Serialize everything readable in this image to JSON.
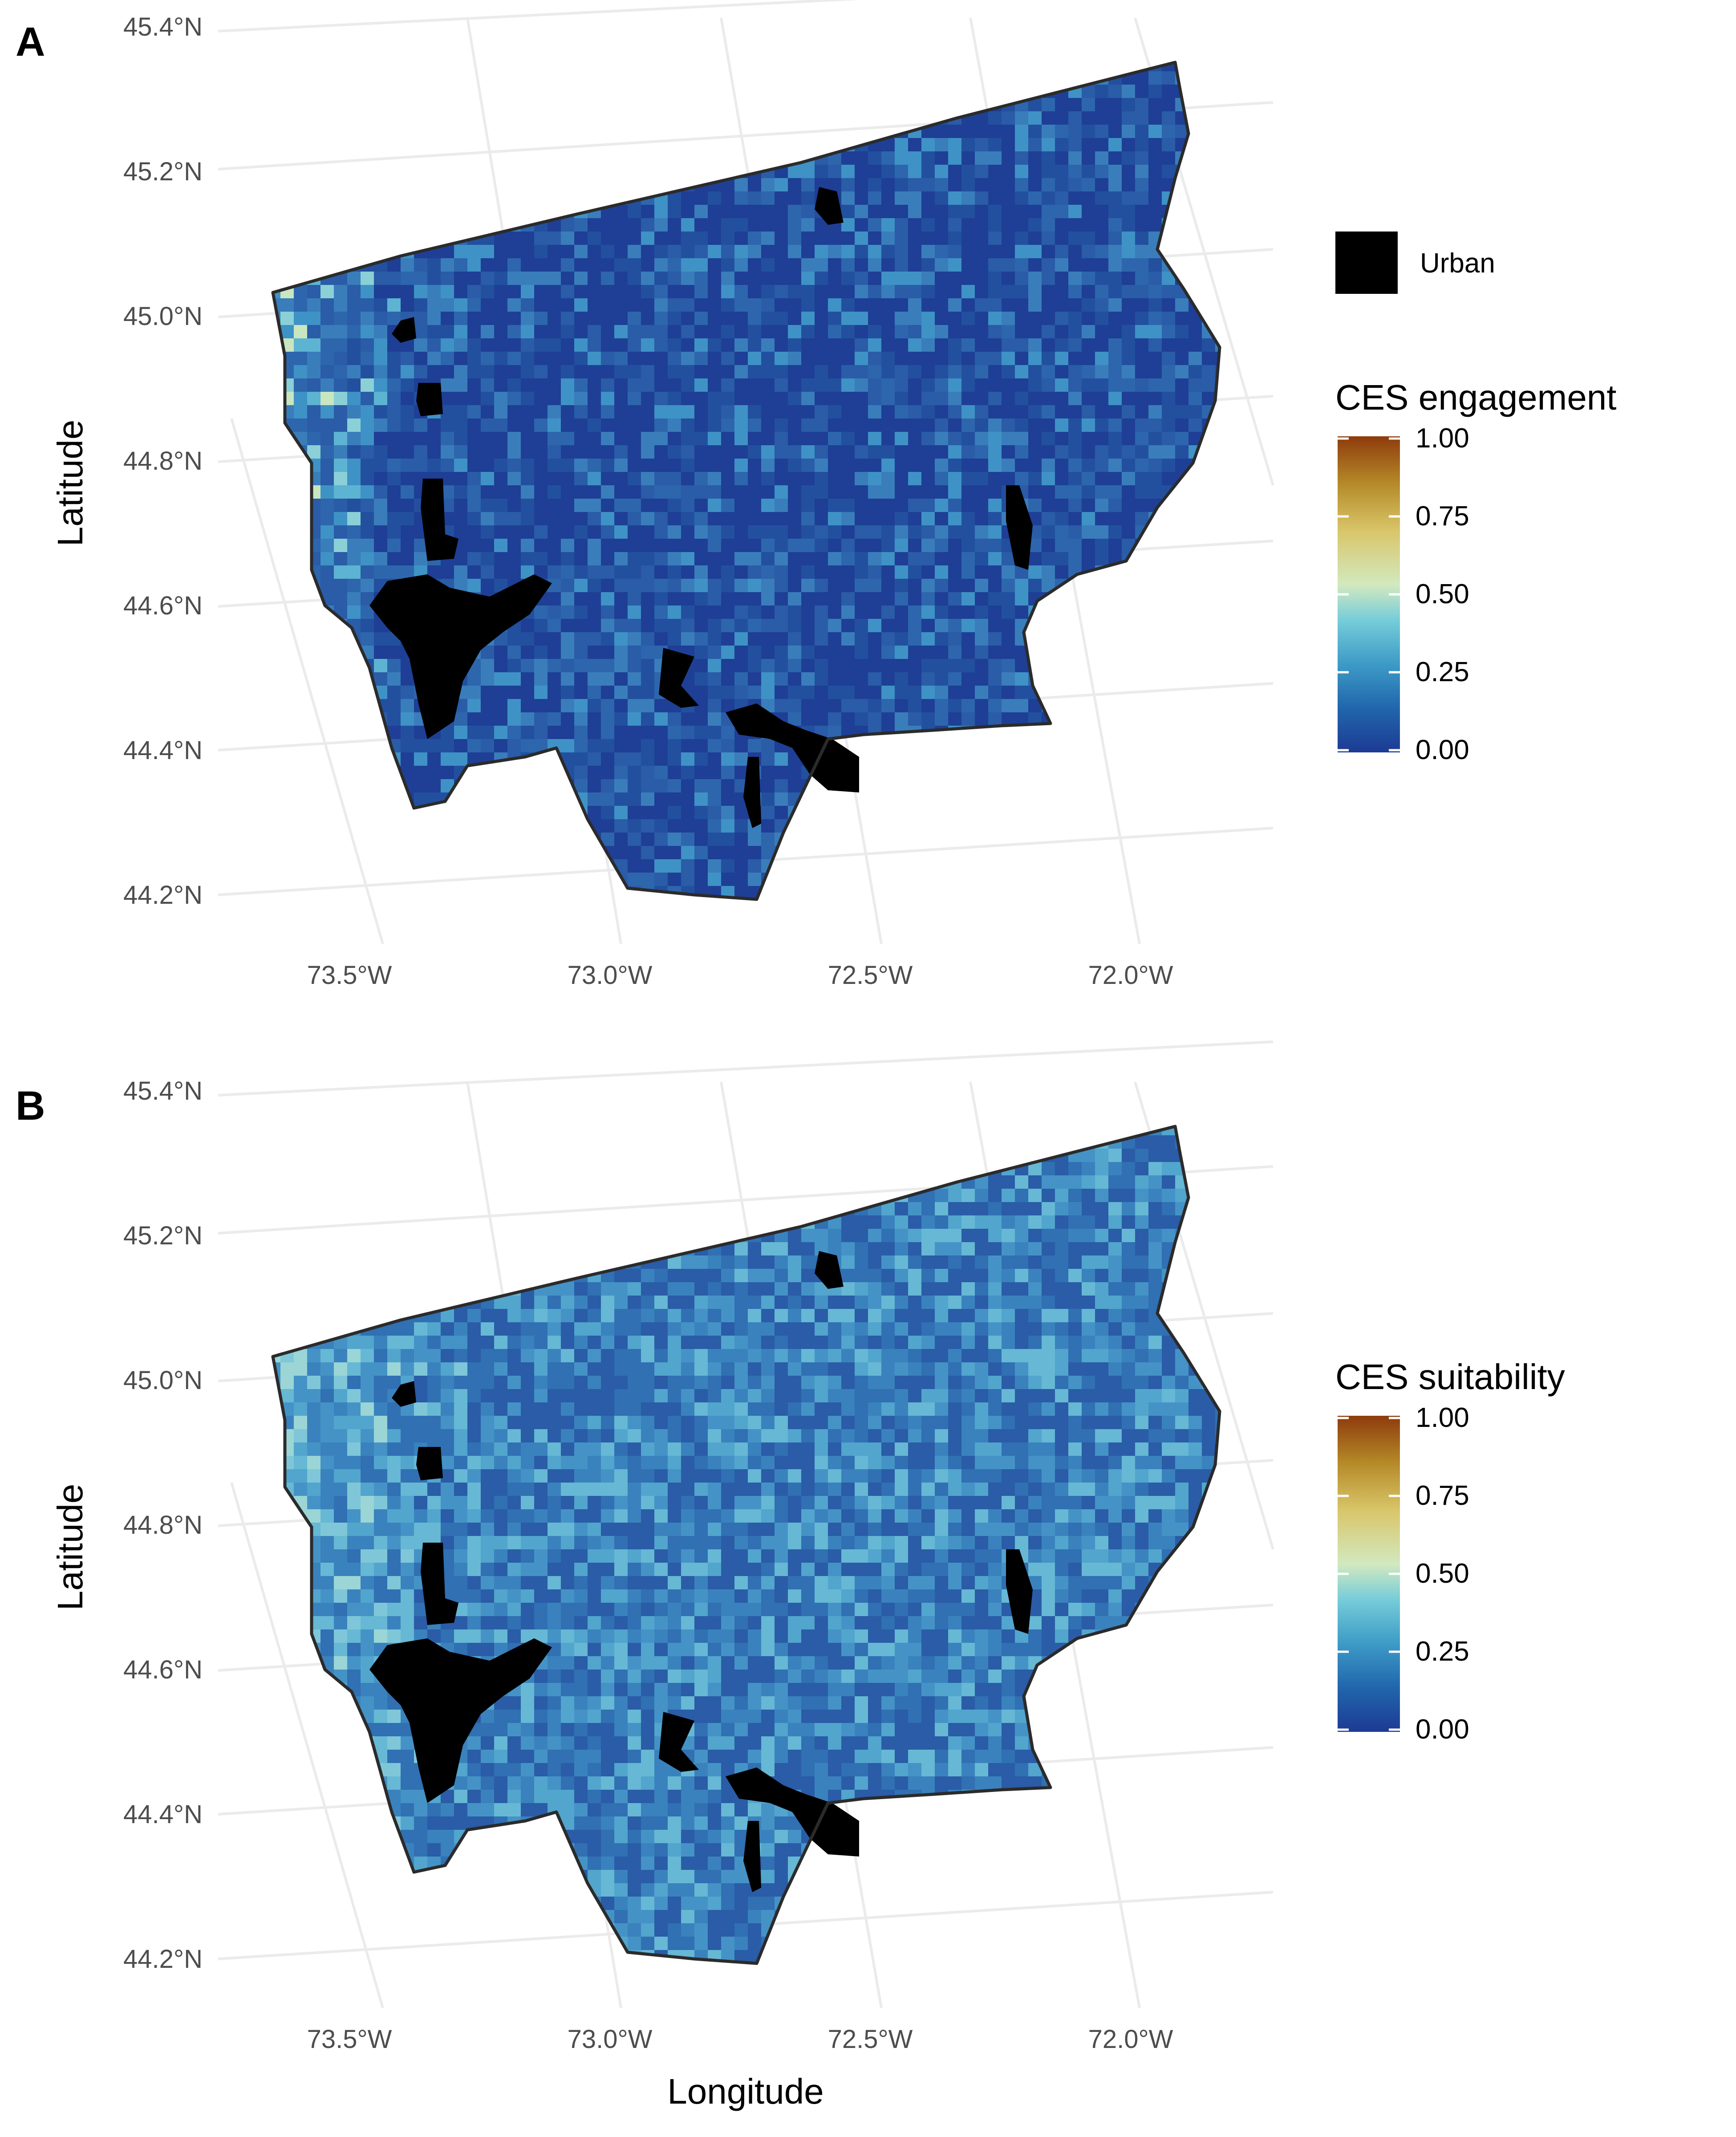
{
  "panels": [
    {
      "letter": "A",
      "legend_title": "CES engagement",
      "pattern": "engagement",
      "show_urban_legend": true,
      "show_xlabel": false
    },
    {
      "letter": "B",
      "legend_title": "CES suitability",
      "pattern": "suitability",
      "show_urban_legend": false,
      "show_xlabel": true
    }
  ],
  "axes": {
    "ylabel": "Latitude",
    "xlabel": "Longitude",
    "lat_ticks": [
      "45.4°N",
      "45.2°N",
      "45.0°N",
      "44.8°N",
      "44.6°N",
      "44.4°N",
      "44.2°N"
    ],
    "lon_ticks": [
      "73.5°W",
      "73.0°W",
      "72.5°W",
      "72.0°W"
    ]
  },
  "urban_legend": {
    "label": "Urban",
    "color": "#000000"
  },
  "colorbar": {
    "ticks": [
      "1.00",
      "0.75",
      "0.50",
      "0.25",
      "0.00"
    ],
    "range": [
      0,
      1
    ],
    "colors": [
      "#1d3a94",
      "#2166ac",
      "#3d9bc7",
      "#77cdd9",
      "#d2e9bf",
      "#d9c66a",
      "#b58a28",
      "#8e3b0c"
    ]
  },
  "grid": true
}
